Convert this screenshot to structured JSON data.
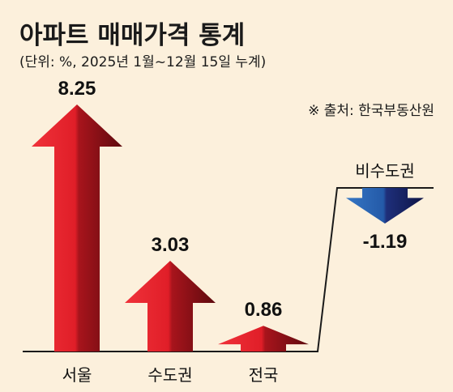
{
  "header": {
    "title": "아파트 매매가격 통계",
    "subtitle": "(단위: %, 2025년 1월~12월 15일 누계)",
    "source": "※ 출처: 한국부동산원"
  },
  "colors": {
    "background": "#fcf0dc",
    "up_light": "#f0323a",
    "up_dark": "#6e0b10",
    "down_light": "#2c6bb8",
    "down_dark": "#101a55",
    "baseline": "#1a1a1a"
  },
  "chart_data": {
    "type": "bar",
    "title": "아파트 매매가격 통계",
    "subtitle": "(단위: %, 2025년 1월~12월 15일 누계)",
    "categories": [
      "서울",
      "수도권",
      "전국",
      "비수도권"
    ],
    "values": [
      8.25,
      3.03,
      0.86,
      -1.19
    ],
    "value_labels": [
      "8.25",
      "3.03",
      "0.86",
      "-1.19"
    ],
    "xlabel": "",
    "ylabel": "",
    "grid": false,
    "legend": "none"
  }
}
